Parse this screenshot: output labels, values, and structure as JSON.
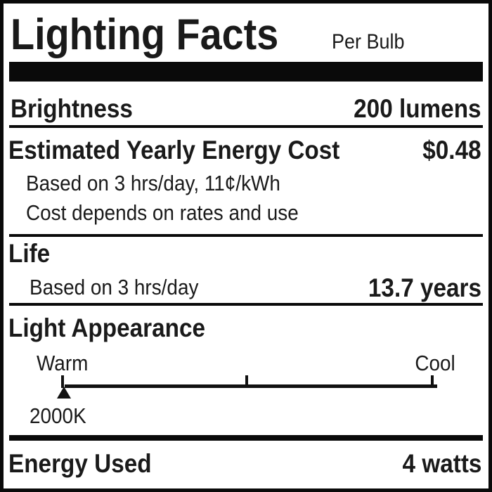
{
  "header": {
    "title": "Lighting Facts",
    "subtitle": "Per Bulb"
  },
  "brightness": {
    "label": "Brightness",
    "value": "200 lumens"
  },
  "energy_cost": {
    "label": "Estimated Yearly Energy Cost",
    "value": "$0.48",
    "note_1": "Based on 3 hrs/day, 11¢/kWh",
    "note_2": "Cost depends on rates and use"
  },
  "life": {
    "label": "Life",
    "note": "Based on 3 hrs/day",
    "value": "13.7 years"
  },
  "light_appearance": {
    "label": "Light Appearance",
    "scale_left": "Warm",
    "scale_right": "Cool",
    "marker_value": "2000K",
    "marker_position_fraction": 0.0
  },
  "energy_used": {
    "label": "Energy Used",
    "value": "4 watts"
  }
}
